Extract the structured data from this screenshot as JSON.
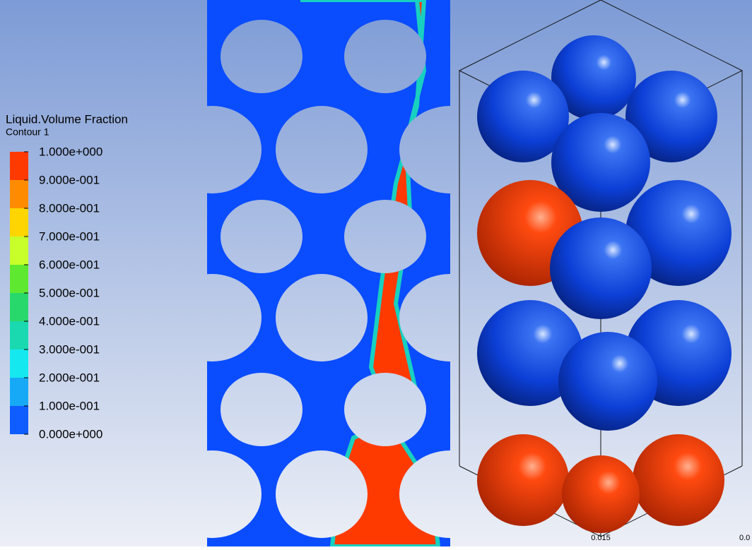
{
  "legend": {
    "title": "Liquid.Volume Fraction",
    "subtitle": "Contour 1",
    "labels": [
      "1.000e+000",
      "9.000e-001",
      "8.000e-001",
      "7.000e-001",
      "6.000e-001",
      "5.000e-001",
      "4.000e-001",
      "3.000e-001",
      "2.000e-001",
      "1.000e-001",
      "0.000e+000"
    ],
    "colors": [
      "#ff3a00",
      "#ff8c00",
      "#ffd500",
      "#c8ff2a",
      "#5fe830",
      "#29d86a",
      "#1ad9b0",
      "#16e8f0",
      "#18a9f6",
      "#0f5cff"
    ]
  },
  "axis_labels": [
    "0.015",
    "0.0"
  ]
}
